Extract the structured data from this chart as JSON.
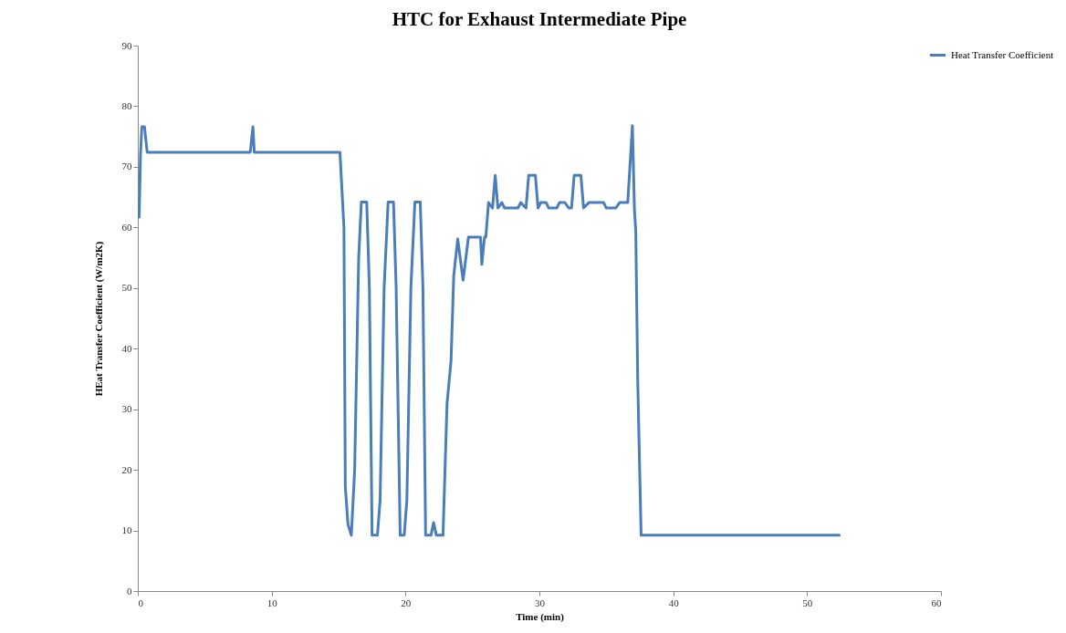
{
  "chart_data": {
    "type": "line",
    "title": "HTC for Exhaust Intermediate Pipe",
    "xlabel": "Time (min)",
    "ylabel": "HEat Transfer Coefficient (W/m2K)",
    "xlim": [
      0,
      60
    ],
    "xticks": [
      0,
      10,
      20,
      30,
      40,
      50,
      60
    ],
    "ylim": [
      0,
      90
    ],
    "yticks": [
      0,
      10,
      20,
      30,
      40,
      50,
      60,
      70,
      80,
      90
    ],
    "grid": false,
    "legend": "top right",
    "marker": "none",
    "line_style": "solid",
    "series": [
      {
        "name": "Heat Transfer Coefficient",
        "color": "#4a7ebb",
        "x": [
          0.1,
          0.2,
          0.3,
          0.4,
          0.5,
          0.7,
          8.4,
          8.6,
          8.7,
          15.0,
          15.1,
          15.4,
          15.5,
          15.7,
          15.95,
          16.2,
          16.5,
          16.7,
          17.1,
          17.3,
          17.5,
          17.9,
          18.1,
          18.4,
          18.7,
          19.1,
          19.3,
          19.6,
          19.9,
          20.1,
          20.4,
          20.7,
          21.1,
          21.3,
          21.5,
          21.9,
          22.1,
          22.3,
          22.8,
          23.1,
          23.4,
          23.6,
          23.9,
          24.3,
          24.7,
          25.6,
          25.7,
          25.9,
          26.0,
          26.2,
          26.5,
          26.7,
          26.9,
          27.2,
          27.4,
          28.4,
          28.6,
          29.0,
          29.2,
          29.7,
          29.9,
          30.1,
          30.5,
          30.7,
          31.3,
          31.5,
          31.9,
          32.2,
          32.4,
          32.6,
          33.1,
          33.3,
          33.7,
          34.8,
          35.0,
          35.7,
          36.0,
          36.6,
          36.95,
          37.1,
          37.2,
          37.35,
          37.6,
          52.4
        ],
        "values": [
          61.7,
          72,
          76.6,
          76.6,
          76.6,
          72.4,
          72.4,
          76.6,
          72.4,
          72.4,
          72.4,
          60,
          17.3,
          11,
          9.2,
          20,
          55,
          64.2,
          64.2,
          50,
          9.2,
          9.2,
          15,
          50,
          64.2,
          64.2,
          50,
          9.2,
          9.2,
          15,
          50,
          64.2,
          64.2,
          50,
          9.2,
          9.2,
          11.3,
          9.2,
          9.2,
          30.9,
          38,
          52,
          58.1,
          51.3,
          58.4,
          58.4,
          53.9,
          58.4,
          58.4,
          64.1,
          63.2,
          68.6,
          63.2,
          64.1,
          63.2,
          63.2,
          64.1,
          63.2,
          68.6,
          68.6,
          63.2,
          64.1,
          64.1,
          63.2,
          63.2,
          64.1,
          64.1,
          63.2,
          63.2,
          68.6,
          68.6,
          63.2,
          64.1,
          64.1,
          63.2,
          63.2,
          64.1,
          64.1,
          76.8,
          63,
          59.4,
          34.3,
          9.2,
          9.2
        ]
      }
    ]
  }
}
